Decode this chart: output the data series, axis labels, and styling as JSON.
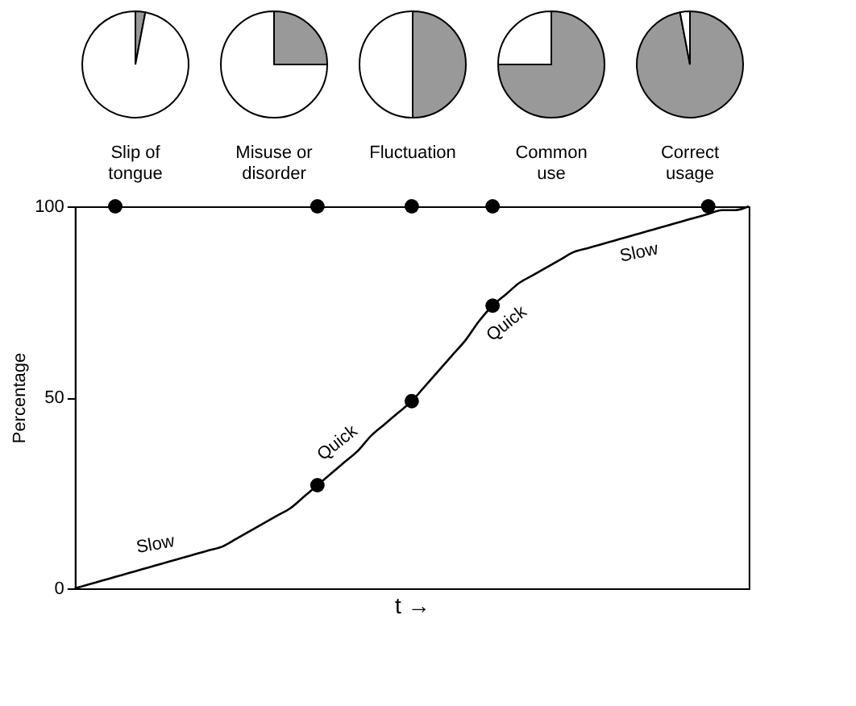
{
  "chart_data": [
    {
      "type": "pie",
      "title": "Slip of\ntongue",
      "categories": [
        null,
        null
      ],
      "values": [
        3,
        97
      ],
      "colors": [
        "#999999",
        "#ffffff"
      ]
    },
    {
      "type": "pie",
      "title": "Misuse or\ndisorder",
      "categories": [
        null,
        null
      ],
      "values": [
        25,
        75
      ],
      "colors": [
        "#999999",
        "#ffffff"
      ]
    },
    {
      "type": "pie",
      "title": "Fluctuation",
      "categories": [
        null,
        null
      ],
      "values": [
        50,
        50
      ],
      "colors": [
        "#999999",
        "#ffffff"
      ]
    },
    {
      "type": "pie",
      "title": "Common\nuse",
      "categories": [
        null,
        null
      ],
      "values": [
        75,
        25
      ],
      "colors": [
        "#999999",
        "#ffffff"
      ]
    },
    {
      "type": "pie",
      "title": "Correct\nusage",
      "categories": [
        null,
        null
      ],
      "values": [
        97,
        3
      ],
      "colors": [
        "#999999",
        "#ffffff"
      ]
    },
    {
      "type": "line",
      "xlabel": "t →",
      "ylabel": "Percentage",
      "ylim": [
        0,
        100
      ],
      "yticks": [
        0,
        50,
        100
      ],
      "tick_labels": "y",
      "annotations": [
        "Slow",
        "Quick",
        "Quick",
        "Slow"
      ],
      "categories": [
        null,
        null,
        null,
        null,
        null,
        null,
        null,
        null,
        null,
        null,
        null,
        null,
        null,
        null,
        null,
        null,
        null,
        null,
        null,
        null,
        null,
        null,
        null,
        null,
        null,
        null,
        null,
        null,
        null,
        null,
        null,
        null,
        null,
        null,
        null,
        null,
        null,
        null,
        null,
        null,
        null,
        null,
        null,
        null,
        null,
        null,
        null,
        null,
        null,
        null,
        null
      ],
      "series": [
        {
          "type": "line",
          "color": "#000000",
          "values": [
            0,
            1,
            2,
            3,
            4,
            5,
            6,
            7,
            8,
            9,
            10,
            11,
            13,
            15,
            17,
            19,
            21,
            24,
            27,
            30,
            33,
            36,
            40,
            43,
            46,
            49,
            53,
            57,
            61,
            65,
            70,
            74,
            77,
            80,
            82,
            84,
            86,
            88,
            89,
            90,
            91,
            92,
            93,
            94,
            95,
            96,
            97,
            98,
            99,
            99,
            100
          ]
        },
        {
          "type": "scatter",
          "color": "#000000",
          "marker": "circle",
          "values": [
            null,
            null,
            null,
            null,
            null,
            null,
            null,
            null,
            null,
            null,
            null,
            null,
            null,
            null,
            null,
            null,
            null,
            null,
            27,
            null,
            null,
            null,
            null,
            null,
            null,
            49,
            null,
            null,
            null,
            null,
            null,
            74,
            null,
            null,
            null,
            null,
            null,
            null,
            null,
            null,
            null,
            null,
            null,
            null,
            null,
            null,
            null,
            null,
            null,
            null,
            null
          ]
        },
        {
          "type": "scatter",
          "color": "#000000",
          "marker": "circle",
          "values": [
            null,
            null,
            null,
            100,
            null,
            null,
            null,
            null,
            null,
            null,
            null,
            null,
            null,
            null,
            null,
            null,
            null,
            null,
            100,
            null,
            null,
            null,
            null,
            null,
            null,
            100,
            null,
            null,
            null,
            null,
            null,
            100,
            null,
            null,
            null,
            null,
            null,
            null,
            null,
            null,
            null,
            null,
            null,
            null,
            null,
            null,
            null,
            100,
            null,
            null,
            null
          ]
        }
      ]
    }
  ]
}
